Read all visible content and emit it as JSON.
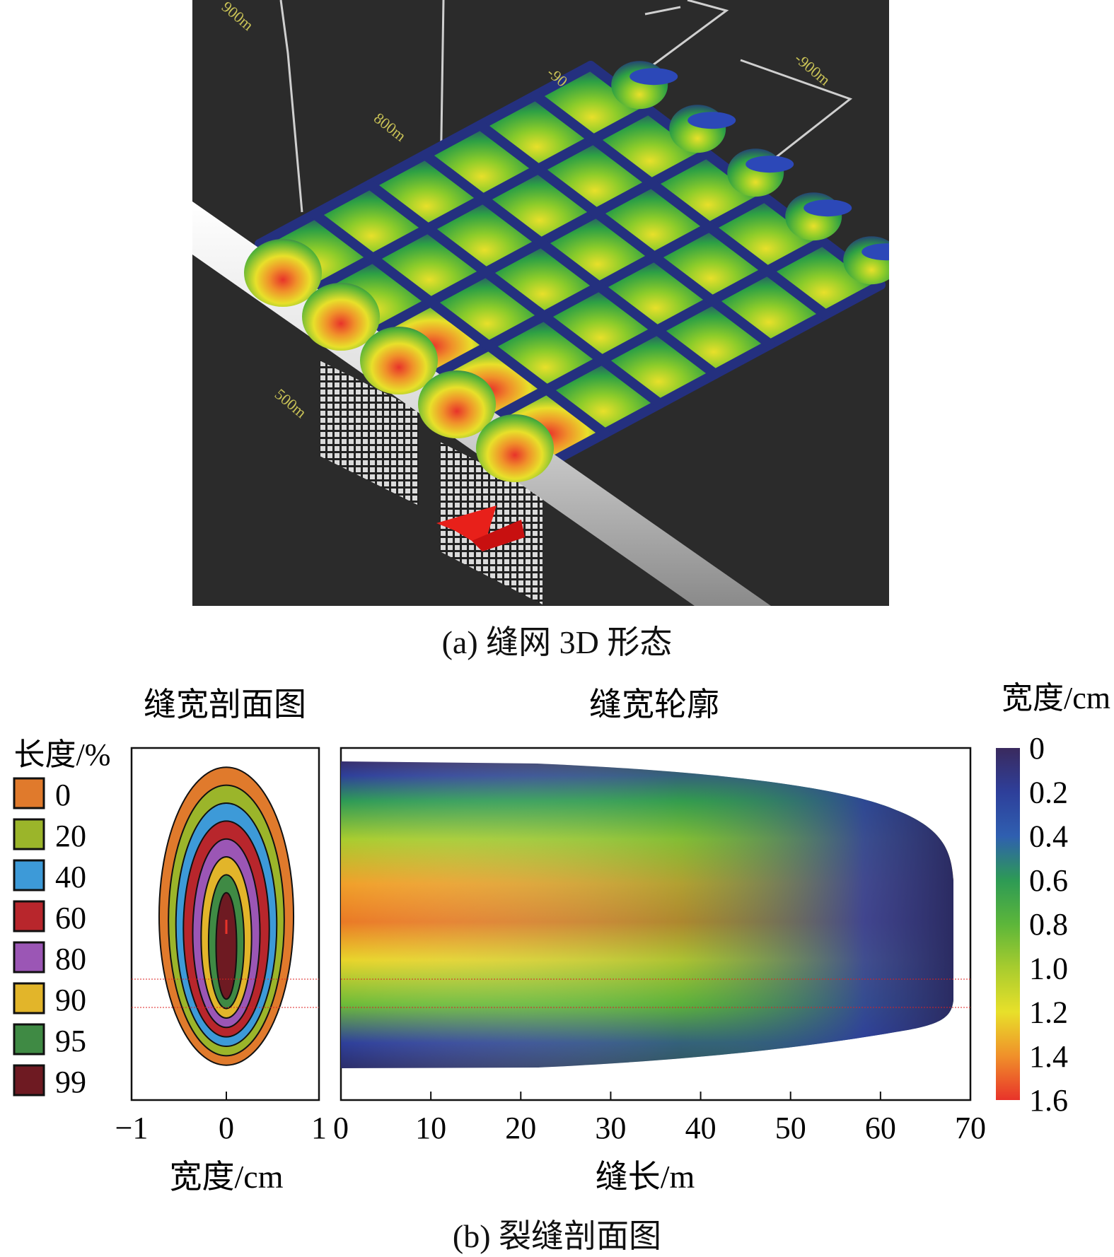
{
  "panel_a": {
    "caption": "(a) 缝网 3D 形态",
    "scene_labels": [
      "900m",
      "800m",
      "-900m",
      "-90",
      "500m"
    ]
  },
  "panel_b": {
    "caption": "(b) 裂缝剖面图",
    "left_title": "缝宽剖面图",
    "right_title": "缝宽轮廓",
    "legend_title": "长度/%",
    "legend": [
      {
        "label": "0",
        "color": "#e07a2c"
      },
      {
        "label": "20",
        "color": "#9bb52a"
      },
      {
        "label": "40",
        "color": "#3d9ad8"
      },
      {
        "label": "60",
        "color": "#b8262c"
      },
      {
        "label": "80",
        "color": "#9b56b5"
      },
      {
        "label": "90",
        "color": "#e2b52a"
      },
      {
        "label": "95",
        "color": "#3f8a44"
      },
      {
        "label": "99",
        "color": "#6e1a22"
      }
    ],
    "colorbar_title": "宽度/cm",
    "colorbar_ticks": [
      "0",
      "0.2",
      "0.4",
      "0.6",
      "0.8",
      "1.0",
      "1.2",
      "1.4",
      "1.6"
    ],
    "colorbar_colors": [
      "#3a2a5e",
      "#2e3f9a",
      "#2f6fb0",
      "#2d9a55",
      "#5cb63a",
      "#a8cc2e",
      "#e8e02a",
      "#f0902a",
      "#e8332a"
    ]
  },
  "chart_data": [
    {
      "type": "area",
      "title": "缝宽剖面图",
      "xlabel": "宽度/cm",
      "ylabel": "长度/%",
      "x_ticks": [
        "−1",
        "0",
        "1"
      ],
      "xlim": [
        -1,
        1
      ],
      "series": [
        {
          "name": "0",
          "half_width_cm": 0.72
        },
        {
          "name": "20",
          "half_width_cm": 0.62
        },
        {
          "name": "40",
          "half_width_cm": 0.54
        },
        {
          "name": "60",
          "half_width_cm": 0.46
        },
        {
          "name": "80",
          "half_width_cm": 0.36
        },
        {
          "name": "90",
          "half_width_cm": 0.27
        },
        {
          "name": "95",
          "half_width_cm": 0.19
        },
        {
          "name": "99",
          "half_width_cm": 0.11
        }
      ]
    },
    {
      "type": "heatmap",
      "title": "缝宽轮廓",
      "xlabel": "缝长/m",
      "x_ticks": [
        "0",
        "10",
        "20",
        "30",
        "40",
        "50",
        "60",
        "70"
      ],
      "xlim": [
        0,
        70
      ],
      "fracture_length_m": 68,
      "colorbar_label": "宽度/cm",
      "colorbar_range": [
        0,
        1.6
      ],
      "max_width_cm": 1.5
    }
  ]
}
